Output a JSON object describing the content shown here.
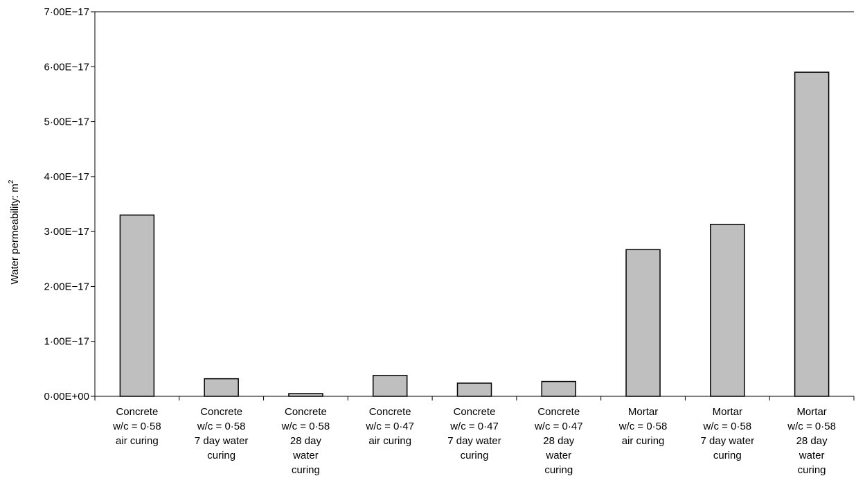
{
  "chart_data": {
    "type": "bar",
    "title": "",
    "xlabel": "",
    "ylabel": "Water permeability: m",
    "ylabel_superscript": "2",
    "ylim": [
      0,
      7e-17
    ],
    "y_ticks": [
      {
        "value": 0,
        "label": "0·00E+00"
      },
      {
        "value": 1e-17,
        "label": "1·00E−17"
      },
      {
        "value": 2e-17,
        "label": "2·00E−17"
      },
      {
        "value": 3e-17,
        "label": "3·00E−17"
      },
      {
        "value": 4e-17,
        "label": "4·00E−17"
      },
      {
        "value": 5e-17,
        "label": "5·00E−17"
      },
      {
        "value": 6e-17,
        "label": "6·00E−17"
      },
      {
        "value": 7e-17,
        "label": "7·00E−17"
      }
    ],
    "categories": [
      [
        "Concrete",
        "w/c = 0·58",
        "air curing"
      ],
      [
        "Concrete",
        "w/c = 0·58",
        "7 day water",
        "curing"
      ],
      [
        "Concrete",
        "w/c = 0·58",
        "28 day",
        "water",
        "curing"
      ],
      [
        "Concrete",
        "w/c = 0·47",
        "air curing"
      ],
      [
        "Concrete",
        "w/c = 0·47",
        "7 day water",
        "curing"
      ],
      [
        "Concrete",
        "w/c = 0·47",
        "28 day",
        "water",
        "curing"
      ],
      [
        "Mortar",
        "w/c = 0·58",
        "air curing"
      ],
      [
        "Mortar",
        "w/c = 0·58",
        "7 day water",
        "curing"
      ],
      [
        "Mortar",
        "w/c = 0·58",
        "28 day",
        "water",
        "curing"
      ]
    ],
    "values": [
      3.3e-17,
      3.2e-18,
      5e-19,
      3.8e-18,
      2.4e-18,
      2.7e-18,
      2.67e-17,
      3.13e-17,
      5.9e-17
    ],
    "bar_color": "#bfbfbf",
    "bar_stroke": "#000000",
    "grid": false,
    "legend": "none"
  }
}
